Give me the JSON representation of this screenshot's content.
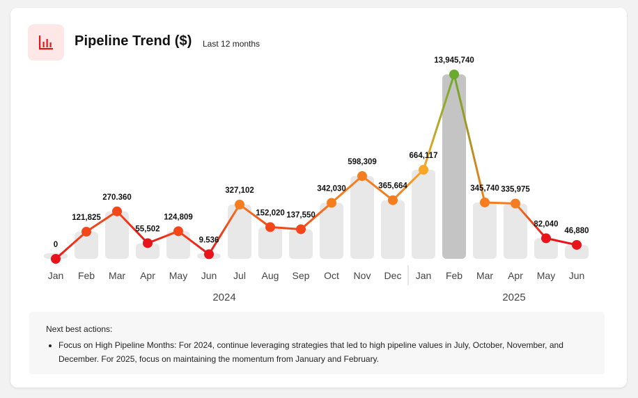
{
  "header": {
    "title": "Pipeline Trend ($)",
    "subtitle": "Last 12 months",
    "icon": "bar-chart-icon"
  },
  "colors": {
    "low": "#e8141b",
    "mid": "#f5461a",
    "orange": "#f57c1f",
    "amber": "#f7a627",
    "peak": "#6aaa2e",
    "bar": "#e8e8e8",
    "bar_highlight": "#c4c4c4"
  },
  "chart_data": {
    "type": "bar",
    "categories": [
      "Jan",
      "Feb",
      "Mar",
      "Apr",
      "May",
      "Jun",
      "Jul",
      "Aug",
      "Sep",
      "Oct",
      "Nov",
      "Dec",
      "Jan",
      "Feb",
      "Mar",
      "Apr",
      "May",
      "Jun"
    ],
    "years": [
      {
        "label": "2024",
        "months": 12
      },
      {
        "label": "2025",
        "months": 6
      }
    ],
    "series": [
      {
        "values": [
          0,
          121825,
          270360,
          55502,
          124809,
          9536,
          327102,
          152020,
          137550,
          342030,
          598309,
          365664,
          664117,
          13945740,
          345740,
          335975,
          82040,
          46880
        ]
      }
    ],
    "data_labels": [
      "0",
      "121,825",
      "270.360",
      "55,502",
      "124,809",
      "9.536",
      "327,102",
      "152,020",
      "137,550",
      "342,030",
      "598,309",
      "365,664",
      "664,117",
      "13,945,740",
      "345,740",
      "335,975",
      "82,040",
      "46,880"
    ],
    "highlight_index": 13,
    "scale": "compressed"
  },
  "actions": {
    "title": "Next best actions:",
    "items": [
      "Focus on High Pipeline Months: For 2024, continue leveraging strategies that led to high pipeline values in July, October, November, and December. For 2025, focus on maintaining the momentum from January and February."
    ]
  }
}
